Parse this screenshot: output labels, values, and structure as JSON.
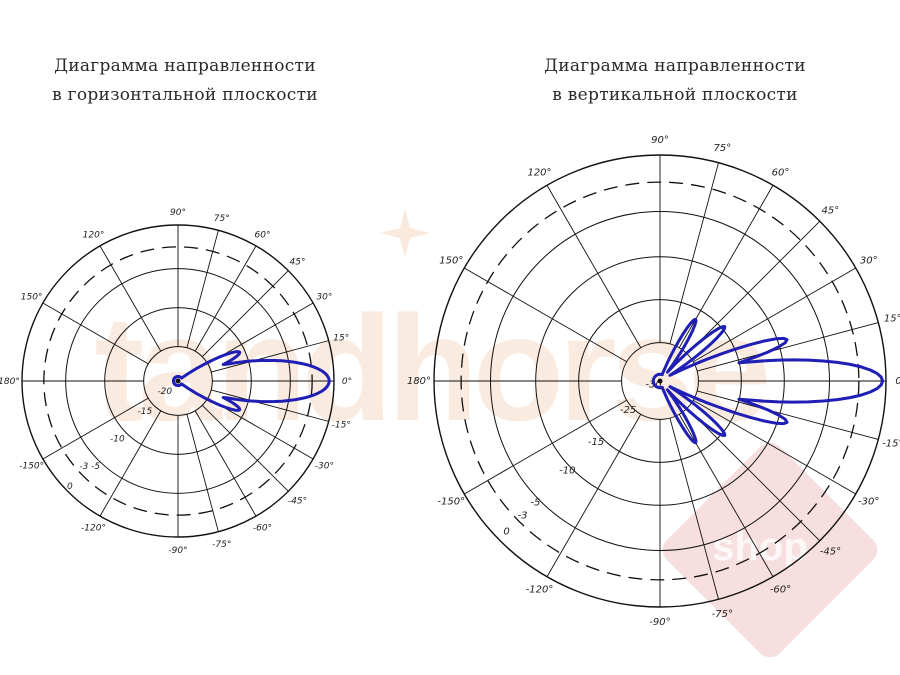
{
  "titles": {
    "horizontal": [
      "Диаграмма направленности",
      "в горизонтальной плоскости"
    ],
    "vertical": [
      "Диаграмма направленности",
      "в вертикальной плоскости"
    ]
  },
  "colors": {
    "pattern": "#1f1fb5",
    "grid": "#111111",
    "watermark": "#f6dcc8",
    "badge": "#f2c9c9"
  },
  "watermark": {
    "brand": "tandhorse",
    "badge": "shop"
  },
  "angle_labels": [
    "90°",
    "75°",
    "60°",
    "45°",
    "30°",
    "15°",
    "0°",
    "-15°",
    "-30°",
    "-45°",
    "-60°",
    "-75°",
    "-90°",
    "-120°",
    "-150°",
    "180°",
    "150°",
    "120°"
  ],
  "diagrams": {
    "horizontal": {
      "ring_labels": [
        "-20",
        "-15",
        "-10",
        "-3 -5",
        "0"
      ],
      "pattern": {
        "main_lobe": {
          "direction_deg": 0,
          "level": 1.0,
          "halfwidth_deg": 13
        },
        "side_lobes": [
          {
            "direction_deg": 25,
            "level": 0.45
          },
          {
            "direction_deg": -25,
            "level": 0.45
          }
        ]
      }
    },
    "vertical": {
      "ring_labels": [
        "-30",
        "-25",
        "-15",
        "-10",
        "-5",
        "-3",
        "0"
      ],
      "pattern": {
        "main_lobe": {
          "direction_deg": 0,
          "level": 1.0,
          "halfwidth_deg": 9
        },
        "side_lobes": [
          {
            "direction_deg": 18,
            "level": 0.6
          },
          {
            "direction_deg": -18,
            "level": 0.6
          },
          {
            "direction_deg": 40,
            "level": 0.38
          },
          {
            "direction_deg": -40,
            "level": 0.38
          },
          {
            "direction_deg": 60,
            "level": 0.32
          },
          {
            "direction_deg": -60,
            "level": 0.32
          }
        ]
      }
    }
  }
}
